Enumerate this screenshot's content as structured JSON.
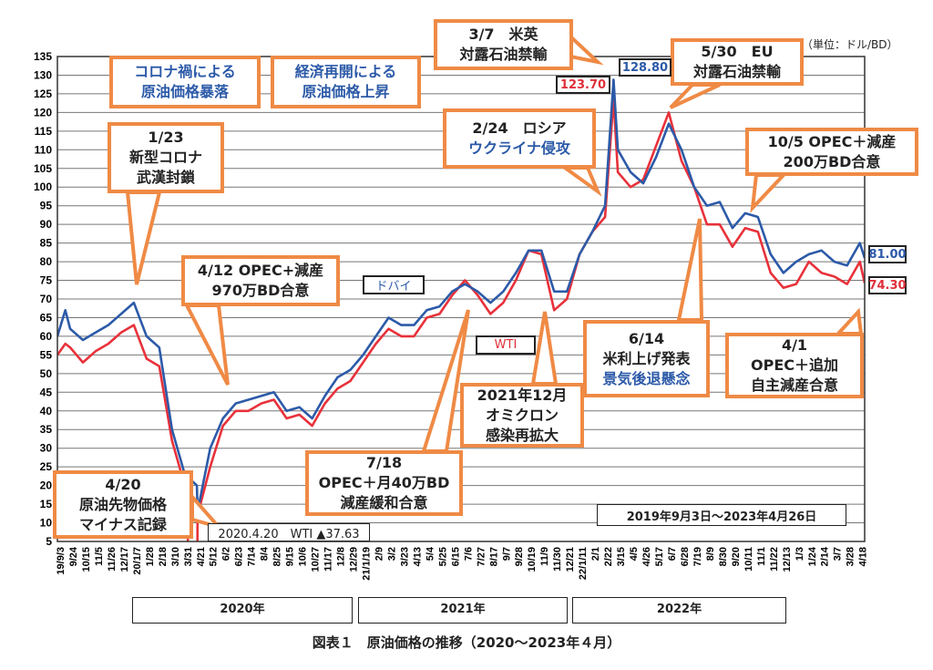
{
  "colors": {
    "dubai": "#2c5aa8",
    "wti": "#e8313a",
    "callout": "#ef8a45"
  },
  "unit_label": "（単位：ドル/BD）",
  "caption": "図表１　原油価格の推移（2020～2023年４月）",
  "period_label": "2019年9月3日～2023年4月26日",
  "years": [
    "2020年",
    "2021年",
    "2022年"
  ],
  "value_labels": {
    "wti_peak": "123.70",
    "dubai_peak": "128.80",
    "dubai_last": "81.00",
    "wti_last": "74.30",
    "wti_negative": "2020.4.20　WTI ▲37.63"
  },
  "series_labels": {
    "dubai": "ドバイ",
    "wti": "WTI"
  },
  "callouts": {
    "corona_crash": [
      "コロナ禍による",
      "原油価格暴落"
    ],
    "reopen_rise": [
      "経済再開による",
      "原油価格上昇"
    ],
    "us_uk_ban": [
      "3/7　米英",
      "対露石油禁輸"
    ],
    "eu_ban": [
      "5/30　EU",
      "対露石油禁輸"
    ],
    "wuhan": [
      "1/23",
      "新型コロナ",
      "武漢封鎖"
    ],
    "russia": [
      "2/24　ロシア",
      "ウクライナ侵攻"
    ],
    "opec_oct": [
      "10/5 OPEC＋減産",
      "200万BD合意"
    ],
    "opec_apr": [
      "4/12 OPEC+減産",
      "970万BD合意"
    ],
    "fed": [
      "6/14",
      "米利上げ発表",
      "景気後退懸念"
    ],
    "opec_2023": [
      "4/1",
      "OPEC＋追加",
      "自主減産合意"
    ],
    "omicron": [
      "2021年12月",
      "オミクロン",
      "感染再拡大"
    ],
    "opec_jul": [
      "7/18",
      "OPEC＋月40万BD",
      "減産緩和合意"
    ],
    "negative": [
      "4/20",
      "原油先物価格",
      "マイナス記録"
    ]
  },
  "chart_data": {
    "type": "line",
    "title": "原油価格の推移（2020～2023年４月）",
    "ylabel": "ドル/BD",
    "ylim": [
      5,
      135
    ],
    "yticks": [
      5,
      10,
      15,
      20,
      25,
      30,
      35,
      40,
      45,
      50,
      55,
      60,
      65,
      70,
      75,
      80,
      85,
      90,
      95,
      100,
      105,
      110,
      115,
      120,
      125,
      130,
      135
    ],
    "grid": true,
    "xrange": [
      "2019-09-03",
      "2023-04-26"
    ],
    "xtick_labels": [
      "19/9/3",
      "9/24",
      "10/15",
      "11/5",
      "11/26",
      "12/17",
      "20/1/7",
      "1/28",
      "2/18",
      "3/10",
      "3/31",
      "4/21",
      "5/12",
      "6/2",
      "6/23",
      "7/14",
      "8/4",
      "8/25",
      "9/15",
      "10/6",
      "10/27",
      "11/17",
      "12/8",
      "12/29",
      "21/1/19",
      "2/9",
      "3/2",
      "3/23",
      "4/13",
      "5/4",
      "5/25",
      "6/15",
      "7/6",
      "7/27",
      "8/17",
      "9/7",
      "9/28",
      "10/19",
      "11/9",
      "11/30",
      "12/21",
      "22/1/11",
      "2/1",
      "2/22",
      "3/15",
      "4/5",
      "4/26",
      "5/17",
      "6/7",
      "6/28",
      "7/19",
      "8/9",
      "8/30",
      "9/20",
      "10/11",
      "11/1",
      "11/22",
      "12/13",
      "1/3",
      "1/24",
      "2/14",
      "3/7",
      "3/28",
      "4/18"
    ],
    "x": [
      "2019-09-03",
      "2019-09-16",
      "2019-09-24",
      "2019-10-15",
      "2019-11-05",
      "2019-11-26",
      "2019-12-17",
      "2020-01-07",
      "2020-01-28",
      "2020-02-18",
      "2020-03-10",
      "2020-03-31",
      "2020-04-20",
      "2020-04-21",
      "2020-05-12",
      "2020-06-02",
      "2020-06-23",
      "2020-07-14",
      "2020-08-04",
      "2020-08-25",
      "2020-09-15",
      "2020-10-06",
      "2020-10-27",
      "2020-11-17",
      "2020-12-08",
      "2020-12-29",
      "2021-01-19",
      "2021-02-09",
      "2021-03-02",
      "2021-03-23",
      "2021-04-13",
      "2021-05-04",
      "2021-05-25",
      "2021-06-15",
      "2021-07-06",
      "2021-07-27",
      "2021-08-17",
      "2021-09-07",
      "2021-09-28",
      "2021-10-19",
      "2021-11-09",
      "2021-11-30",
      "2021-12-21",
      "2022-01-11",
      "2022-02-01",
      "2022-02-22",
      "2022-03-08",
      "2022-03-15",
      "2022-04-05",
      "2022-04-26",
      "2022-05-17",
      "2022-06-07",
      "2022-06-28",
      "2022-07-19",
      "2022-08-09",
      "2022-08-30",
      "2022-09-20",
      "2022-10-11",
      "2022-11-01",
      "2022-11-22",
      "2022-12-13",
      "2023-01-03",
      "2023-01-24",
      "2023-02-14",
      "2023-03-07",
      "2023-03-28",
      "2023-04-18",
      "2023-04-26"
    ],
    "series": [
      {
        "name": "ドバイ",
        "values": [
          60,
          67,
          62,
          59,
          61,
          63,
          66,
          69,
          60,
          57,
          35,
          23,
          20,
          13,
          30,
          38,
          42,
          43,
          44,
          45,
          40,
          41,
          38,
          44,
          49,
          51,
          55,
          60,
          65,
          63,
          63,
          67,
          68,
          72,
          74,
          72,
          69,
          72,
          77,
          83,
          83,
          72,
          72,
          82,
          88,
          95,
          128.8,
          110,
          104,
          101,
          108,
          117,
          110,
          100,
          95,
          96,
          89,
          93,
          92,
          82,
          77,
          80,
          82,
          83,
          80,
          79,
          85,
          81
        ]
      },
      {
        "name": "WTI",
        "values": [
          55,
          58,
          57,
          53,
          56,
          58,
          61,
          63,
          54,
          52,
          32,
          20,
          -37.63,
          12,
          25,
          36,
          40,
          40,
          42,
          43,
          38,
          39,
          36,
          42,
          46,
          48,
          53,
          58,
          62,
          60,
          60,
          65,
          66,
          71,
          75,
          71,
          66,
          69,
          75,
          83,
          82,
          67,
          70,
          82,
          88,
          92,
          123.7,
          104,
          100,
          102,
          111,
          120,
          107,
          100,
          90,
          90,
          84,
          89,
          88,
          77,
          73,
          74,
          80,
          77,
          76,
          74,
          80,
          74.3
        ]
      }
    ]
  }
}
